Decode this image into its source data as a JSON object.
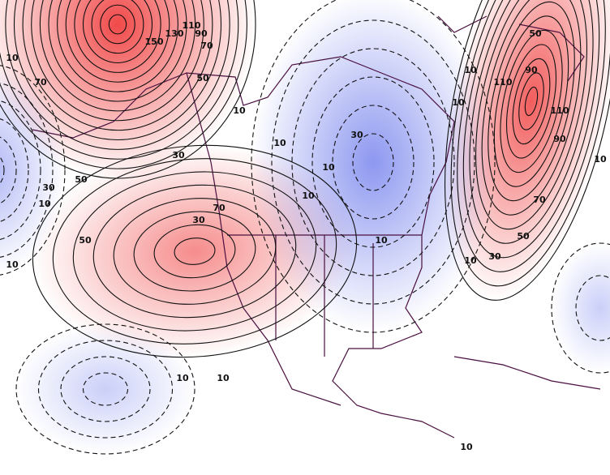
{
  "map": {
    "colors": {
      "positive": "#f04040",
      "negative": "#5060e8",
      "background": "#ffffff",
      "contour": "#111111",
      "coastline": "#4a1040"
    },
    "contour_style": {
      "positive": "solid",
      "negative": "dashed"
    },
    "contour_interval": 20,
    "labels": [
      "150",
      "130",
      "110",
      "90",
      "70",
      "70",
      "10",
      "50",
      "10",
      "30",
      "50",
      "30",
      "10",
      "50",
      "70",
      "10",
      "30",
      "10",
      "10",
      "10",
      "30",
      "50",
      "90",
      "110",
      "110",
      "90",
      "70",
      "50",
      "30",
      "10",
      "10",
      "10",
      "10",
      "10",
      "10",
      "10",
      "10"
    ]
  }
}
